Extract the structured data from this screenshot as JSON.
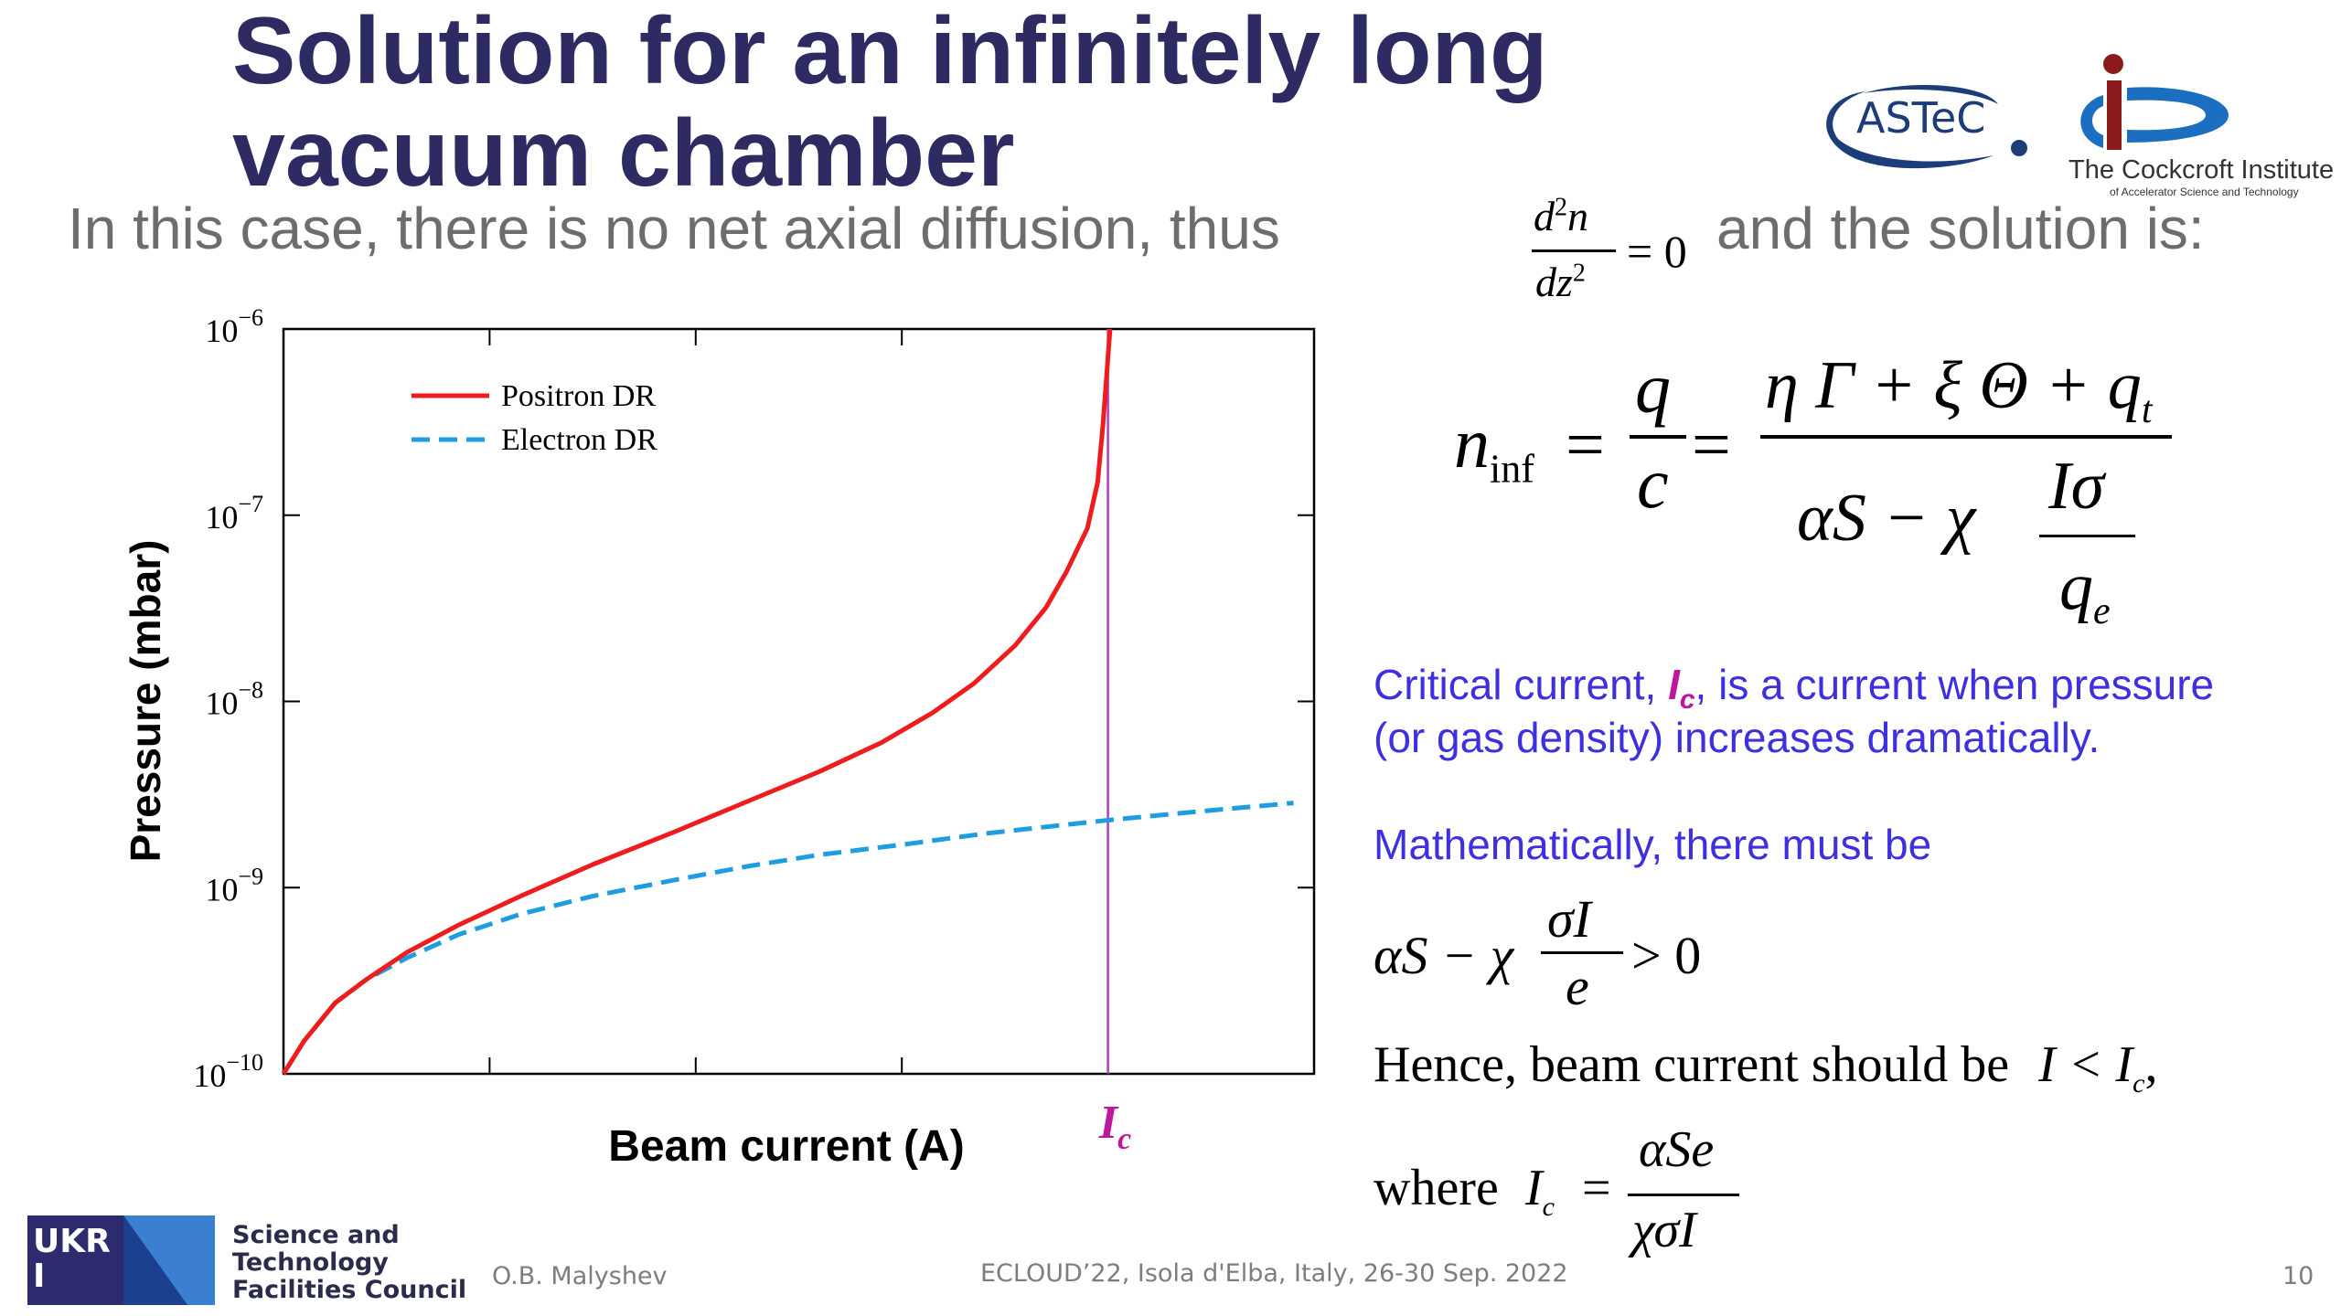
{
  "slide": {
    "title_line1": "Solution for an infinitely long",
    "title_line2": "vacuum chamber",
    "intro_text": "In this case, there is no net axial diffusion, thus",
    "intro_end": "and the solution is:",
    "critical_line1_pre": "Critical current, ",
    "critical_symbol": "I",
    "critical_symbol_sub": "c",
    "critical_line1_post": ", is a current when pressure",
    "critical_line2": "(or gas density) increases dramatically.",
    "math_intro": "Mathematically, there must be",
    "hence_text": "Hence, beam current should be",
    "where_text": "where"
  },
  "logos": {
    "astec": "ASTeC",
    "cockcroft_name": "The Cockcroft Institute",
    "cockcroft_sub": "of Accelerator Science and Technology",
    "ukri": "UKRI",
    "stfc_line1": "Science and",
    "stfc_line2": "Technology",
    "stfc_line3": "Facilities Council"
  },
  "footer": {
    "author": "O.B. Malyshev",
    "event": "ECLOUD’22, Isola d'Elba, Italy, 26-30 Sep. 2022",
    "page": "10"
  },
  "colors": {
    "title": "#2e2a62",
    "positron": "#ee1c1c",
    "electron": "#1e9ee0",
    "critical_line": "#b43cc8",
    "blue_text": "#3c30e0",
    "ic_label": "#c0169c"
  },
  "chart_data": {
    "type": "line",
    "xlabel": "Beam current (A)",
    "ylabel": "Pressure (mbar)",
    "y_scale": "log",
    "ylim": [
      1e-10,
      1e-06
    ],
    "yticks": [
      {
        "base": "10",
        "exp": "−10",
        "value": 1e-10
      },
      {
        "base": "10",
        "exp": "−9",
        "value": 1e-09
      },
      {
        "base": "10",
        "exp": "−8",
        "value": 1e-08
      },
      {
        "base": "10",
        "exp": "−7",
        "value": 1e-07
      },
      {
        "base": "10",
        "exp": "−6",
        "value": 1e-06
      }
    ],
    "xlim": [
      0,
      1
    ],
    "x_ticks_unlabeled": [
      0.2,
      0.4,
      0.6,
      0.8
    ],
    "critical_marker": {
      "label": "I",
      "sub": "c",
      "x": 0.8
    },
    "legend_position": "top-left",
    "series": [
      {
        "name": "Positron DR",
        "style": "solid",
        "x": [
          0,
          0.02,
          0.05,
          0.08,
          0.12,
          0.17,
          0.23,
          0.3,
          0.38,
          0.45,
          0.52,
          0.58,
          0.63,
          0.67,
          0.71,
          0.74,
          0.76,
          0.78,
          0.79,
          0.795,
          0.8,
          0.802
        ],
        "y": [
          1e-10,
          1.5e-10,
          2.4e-10,
          3.2e-10,
          4.5e-10,
          6.3e-10,
          9e-10,
          1.33e-09,
          2e-09,
          2.9e-09,
          4.2e-09,
          6e-09,
          8.7e-09,
          1.25e-08,
          2e-08,
          3.2e-08,
          5e-08,
          8.5e-08,
          1.5e-07,
          3e-07,
          7e-07,
          1e-06
        ]
      },
      {
        "name": "Electron DR",
        "style": "dashed",
        "x": [
          0,
          0.02,
          0.05,
          0.08,
          0.12,
          0.17,
          0.23,
          0.3,
          0.38,
          0.45,
          0.52,
          0.6,
          0.68,
          0.75,
          0.8,
          0.85,
          0.9,
          0.95,
          0.98
        ],
        "y": [
          1e-10,
          1.5e-10,
          2.4e-10,
          3.2e-10,
          4.2e-10,
          5.6e-10,
          7.2e-10,
          9e-10,
          1.1e-09,
          1.3e-09,
          1.5e-09,
          1.7e-09,
          1.95e-09,
          2.15e-09,
          2.3e-09,
          2.45e-09,
          2.6e-09,
          2.75e-09,
          2.85e-09
        ]
      }
    ]
  }
}
